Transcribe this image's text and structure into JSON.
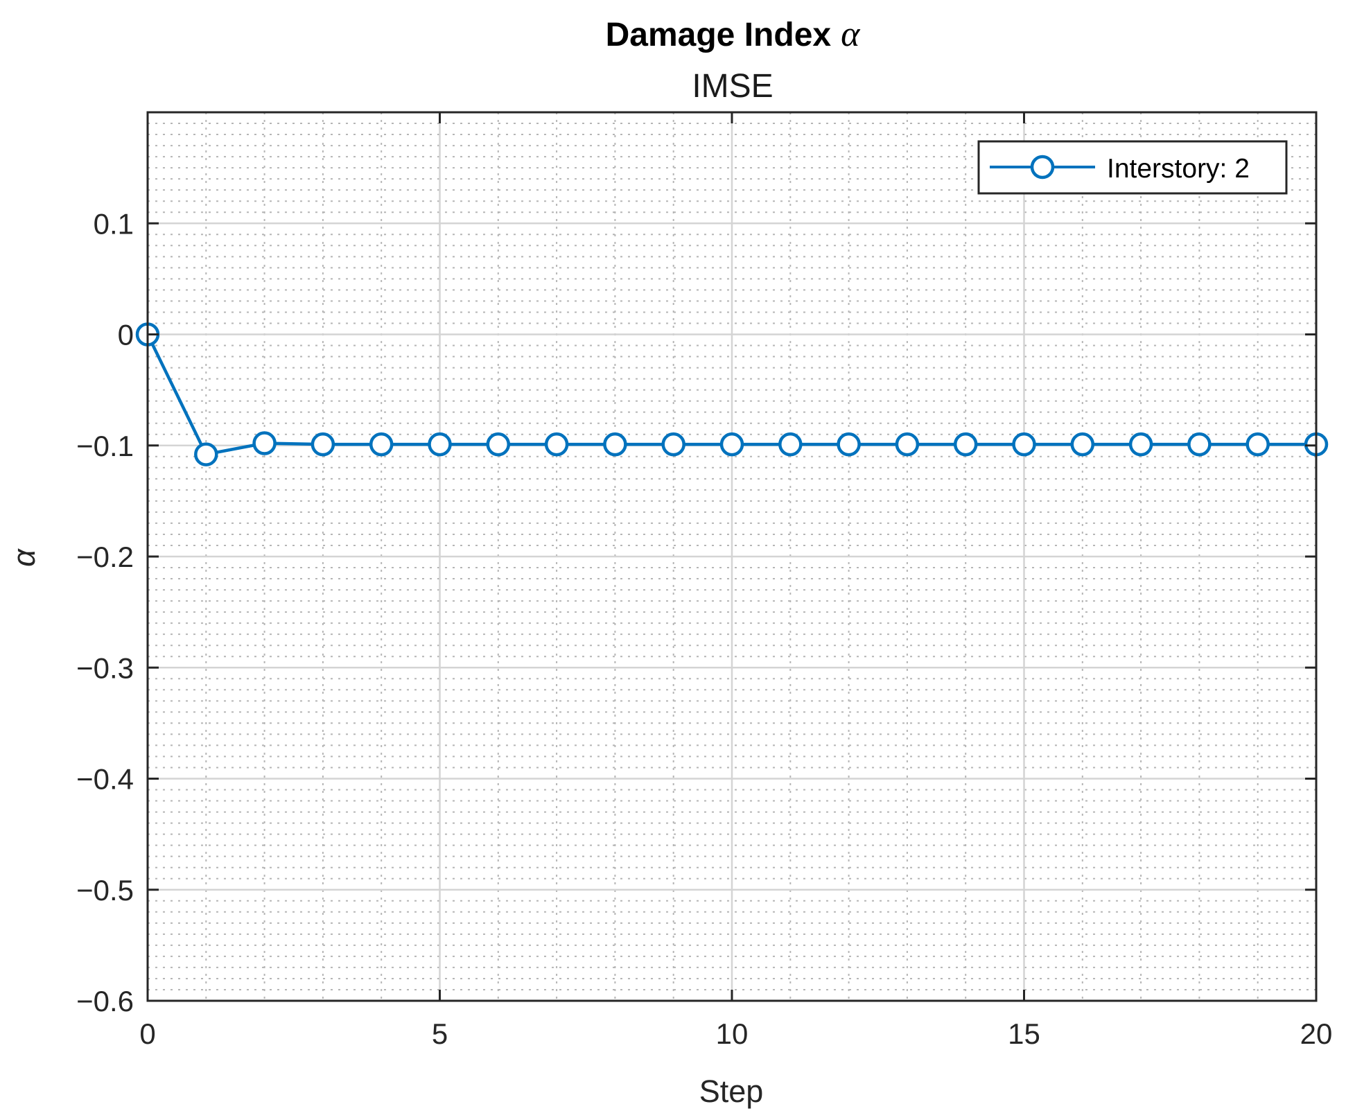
{
  "chart_data": {
    "type": "line",
    "title": "Damage Index",
    "title_symbol": "α",
    "subtitle": "IMSE",
    "xlabel": "Step",
    "ylabel": "α",
    "xlim": [
      0,
      20
    ],
    "ylim": [
      -0.6,
      0.2
    ],
    "x_ticks": [
      0,
      5,
      10,
      15,
      20
    ],
    "x_tick_labels": [
      "0",
      "5",
      "10",
      "15",
      "20"
    ],
    "y_ticks": [
      0.1,
      0,
      -0.1,
      -0.2,
      -0.3,
      -0.4,
      -0.5,
      -0.6
    ],
    "y_tick_labels": [
      "0.1",
      "0",
      "−0.1",
      "−0.2",
      "−0.3",
      "−0.4",
      "−0.5",
      "−0.6"
    ],
    "grid": true,
    "minor_grid": true,
    "legend_position": "top-right",
    "series": [
      {
        "name": "Interstory: 2",
        "color": "#0072BD",
        "marker": "circle",
        "x": [
          0,
          1,
          2,
          3,
          4,
          5,
          6,
          7,
          8,
          9,
          10,
          11,
          12,
          13,
          14,
          15,
          16,
          17,
          18,
          19,
          20
        ],
        "y": [
          0,
          -0.108,
          -0.098,
          -0.099,
          -0.099,
          -0.099,
          -0.099,
          -0.099,
          -0.099,
          -0.099,
          -0.099,
          -0.099,
          -0.099,
          -0.099,
          -0.099,
          -0.099,
          -0.099,
          -0.099,
          -0.099,
          -0.099,
          -0.099
        ]
      }
    ]
  }
}
